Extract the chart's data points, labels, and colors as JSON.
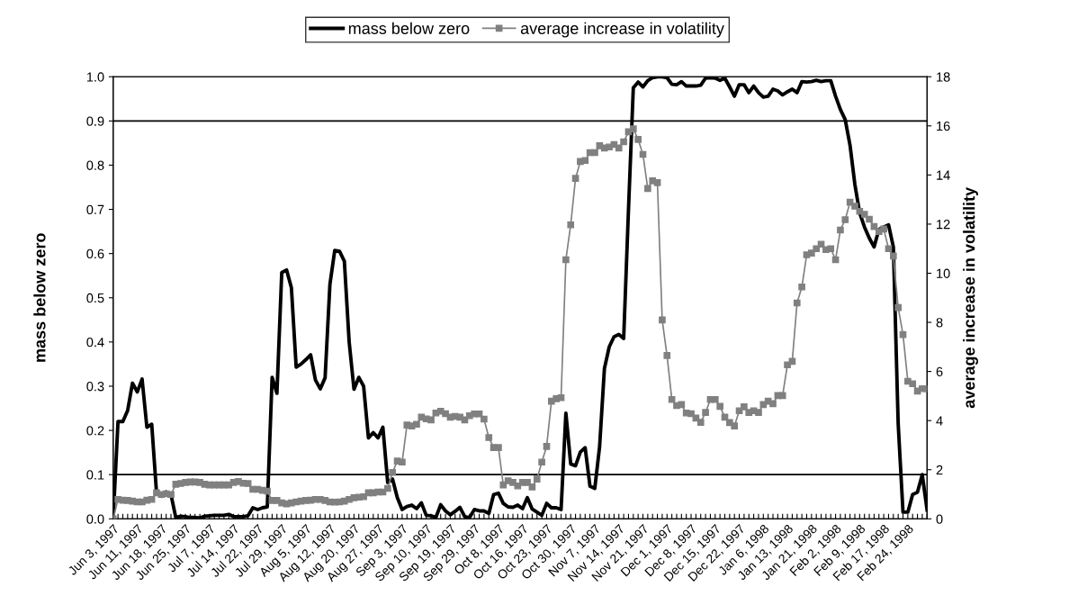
{
  "chart_data": {
    "type": "line",
    "categories": [
      "Jun 3, 1997",
      null,
      null,
      null,
      null,
      "Jun 11, 1997",
      null,
      null,
      null,
      null,
      "Jun 18, 1997",
      null,
      null,
      null,
      null,
      "Jun 25, 1997",
      null,
      null,
      null,
      null,
      "Jul 7, 1997",
      null,
      null,
      null,
      null,
      "Jul 14, 1997",
      null,
      null,
      null,
      null,
      "Jul 22, 1997",
      null,
      null,
      null,
      null,
      "Jul 29, 1997",
      null,
      null,
      null,
      null,
      "Aug 5, 1997",
      null,
      null,
      null,
      null,
      "Aug 12, 1997",
      null,
      null,
      null,
      null,
      "Aug 20, 1997",
      null,
      null,
      null,
      null,
      "Aug 27, 1997",
      null,
      null,
      null,
      null,
      "Sep 3, 1997",
      null,
      null,
      null,
      null,
      "Sep 10, 1997",
      null,
      null,
      null,
      null,
      "Sep 19, 1997",
      null,
      null,
      null,
      null,
      "Sep 29, 1997",
      null,
      null,
      null,
      null,
      "Oct 8, 1997",
      null,
      null,
      null,
      null,
      "Oct 16, 1997",
      null,
      null,
      null,
      null,
      "Oct 23, 1997",
      null,
      null,
      null,
      null,
      "Oct 30, 1997",
      null,
      null,
      null,
      null,
      "Nov 7, 1997",
      null,
      null,
      null,
      null,
      "Nov 14, 1997",
      null,
      null,
      null,
      null,
      "Nov 21, 1997",
      null,
      null,
      null,
      null,
      "Dec 1, 1997",
      null,
      null,
      null,
      null,
      "Dec 8, 1997",
      null,
      null,
      null,
      null,
      "Dec 15, 1997",
      null,
      null,
      null,
      null,
      "Dec 22, 1997",
      null,
      null,
      null,
      null,
      "Jan 6, 1998",
      null,
      null,
      null,
      null,
      "Jan 13, 1998",
      null,
      null,
      null,
      null,
      "Jan 21, 1998",
      null,
      null,
      null,
      null,
      "Feb 2, 1998",
      null,
      null,
      null,
      null,
      "Feb 9, 1998",
      null,
      null,
      null,
      null,
      "Feb 17, 1998",
      null,
      null,
      null,
      null,
      "Feb 24, 1998",
      null,
      null,
      null,
      null
    ],
    "series": [
      {
        "name": "mass below zero",
        "color": "#000000",
        "marker": "none",
        "values": [
          0,
          0.22,
          0.22,
          0.245,
          0.307,
          0.287,
          0.316,
          0.207,
          0.214,
          0.059,
          0.051,
          0.061,
          0.055,
          0.003,
          0.006,
          0.005,
          0.003,
          0.003,
          0.002,
          0.006,
          0.007,
          0.008,
          0.008,
          0.008,
          0.01,
          0.005,
          0.005,
          0.005,
          0.007,
          0.025,
          0.021,
          0.025,
          0.027,
          0.32,
          0.284,
          0.557,
          0.563,
          0.523,
          0.343,
          0.35,
          0.36,
          0.371,
          0.314,
          0.294,
          0.319,
          0.53,
          0.607,
          0.605,
          0.583,
          0.4,
          0.293,
          0.32,
          0.3,
          0.183,
          0.195,
          0.183,
          0.207,
          0.082,
          0.09,
          0.048,
          0.021,
          0.028,
          0.031,
          0.023,
          0.036,
          0.008,
          0.007,
          0.003,
          0.032,
          0.018,
          0.009,
          0.017,
          0.026,
          0.005,
          0.003,
          0.021,
          0.018,
          0.018,
          0.012,
          0.055,
          0.058,
          0.035,
          0.027,
          0.026,
          0.031,
          0.023,
          0.048,
          0.022,
          0.015,
          0.008,
          0.035,
          0.025,
          0.025,
          0.021,
          0.239,
          0.124,
          0.12,
          0.151,
          0.161,
          0.074,
          0.069,
          0.163,
          0.34,
          0.389,
          0.412,
          0.417,
          0.408,
          0.7,
          0.975,
          0.988,
          0.977,
          0.991,
          0.998,
          1.0,
          1.0,
          0.998,
          0.983,
          0.982,
          0.989,
          0.979,
          0.979,
          0.979,
          0.981,
          0.997,
          0.998,
          0.997,
          0.992,
          0.997,
          0.977,
          0.956,
          0.982,
          0.982,
          0.964,
          0.979,
          0.964,
          0.954,
          0.956,
          0.972,
          0.968,
          0.959,
          0.966,
          0.972,
          0.964,
          0.989,
          0.988,
          0.989,
          0.992,
          0.989,
          0.991,
          0.991,
          0.956,
          0.926,
          0.903,
          0.845,
          0.757,
          0.692,
          0.66,
          0.635,
          0.615,
          0.655,
          0.66,
          0.665,
          0.615,
          0.215,
          0.015,
          0.015,
          0.055,
          0.06,
          0.1,
          0.02
        ]
      },
      {
        "name": "average increase in volatility",
        "color": "#808080",
        "marker": "square",
        "axis": "y2",
        "values": [
          0,
          0.79,
          0.76,
          0.75,
          0.72,
          0.69,
          0.69,
          0.76,
          0.79,
          1.06,
          0.99,
          1.02,
          0.99,
          1.41,
          1.44,
          1.48,
          1.5,
          1.5,
          1.48,
          1.41,
          1.38,
          1.38,
          1.38,
          1.38,
          1.38,
          1.48,
          1.52,
          1.45,
          1.44,
          1.2,
          1.2,
          1.16,
          1.13,
          0.75,
          0.75,
          0.65,
          0.61,
          0.65,
          0.69,
          0.72,
          0.75,
          0.76,
          0.79,
          0.79,
          0.75,
          0.69,
          0.68,
          0.69,
          0.72,
          0.79,
          0.86,
          0.88,
          0.9,
          1.06,
          1.06,
          1.09,
          1.09,
          1.24,
          1.89,
          2.35,
          2.31,
          3.82,
          3.78,
          3.85,
          4.14,
          4.07,
          4.03,
          4.31,
          4.38,
          4.28,
          4.14,
          4.17,
          4.14,
          4.03,
          4.2,
          4.27,
          4.27,
          4.06,
          3.31,
          2.9,
          2.9,
          1.38,
          1.55,
          1.48,
          1.34,
          1.48,
          1.48,
          1.3,
          1.62,
          2.31,
          2.95,
          4.79,
          4.89,
          4.93,
          10.55,
          11.97,
          13.86,
          14.55,
          14.59,
          14.91,
          14.91,
          15.19,
          15.1,
          15.14,
          15.24,
          15.1,
          15.35,
          15.76,
          15.88,
          15.45,
          14.84,
          13.45,
          13.76,
          13.69,
          8.1,
          6.65,
          4.86,
          4.61,
          4.65,
          4.31,
          4.28,
          4.1,
          3.93,
          4.33,
          4.86,
          4.86,
          4.58,
          4.14,
          3.92,
          3.78,
          4.4,
          4.56,
          4.33,
          4.4,
          4.33,
          4.65,
          4.79,
          4.69,
          5.02,
          5.02,
          6.27,
          6.41,
          8.79,
          9.44,
          10.75,
          10.82,
          11.0,
          11.18,
          10.96,
          11.0,
          10.55,
          11.76,
          12.18,
          12.89,
          12.73,
          12.52,
          12.4,
          12.2,
          11.9,
          11.7,
          11.8,
          11.0,
          10.7,
          8.6,
          7.5,
          5.6,
          5.5,
          5.2,
          5.3,
          5.3
        ]
      }
    ],
    "ylabel": "mass below zero",
    "y2label": "average increase in volatility",
    "ylim": [
      0,
      1.0
    ],
    "yticks": [
      {
        "value": 0,
        "label": "0.0"
      },
      {
        "value": 0.1,
        "label": "0.1"
      },
      {
        "value": 0.2,
        "label": "0.2"
      },
      {
        "value": 0.3,
        "label": "0.3"
      },
      {
        "value": 0.4,
        "label": "0.4"
      },
      {
        "value": 0.5,
        "label": "0.5"
      },
      {
        "value": 0.6,
        "label": "0.6"
      },
      {
        "value": 0.7,
        "label": "0.7"
      },
      {
        "value": 0.8,
        "label": "0.8"
      },
      {
        "value": 0.9,
        "label": "0.9"
      },
      {
        "value": 1.0,
        "label": "1.0"
      }
    ],
    "y2lim": [
      0,
      18
    ],
    "y2ticks": [
      0,
      2,
      4,
      6,
      8,
      10,
      12,
      14,
      16,
      18
    ],
    "ref_lines": [
      {
        "axis": "y",
        "value": 0.9,
        "color": "#000000"
      },
      {
        "axis": "y",
        "value": 0.1,
        "color": "#000000"
      }
    ],
    "grid": false,
    "legend": "top",
    "line_style": "solid"
  }
}
